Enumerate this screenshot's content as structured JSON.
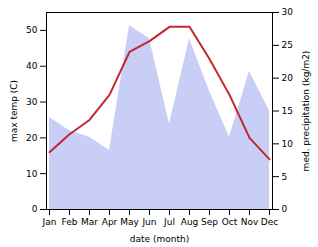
{
  "chart_data": {
    "type": "line",
    "categories": [
      "Jan",
      "Feb",
      "Mar",
      "Apr",
      "May",
      "Jun",
      "Jul",
      "Aug",
      "Sep",
      "Oct",
      "Nov",
      "Dec"
    ],
    "xlabel": "date (month)",
    "ylabel": "max temp (C)",
    "y2label": "med. precipitation (kg/m2)",
    "series": [
      {
        "type": "area",
        "axis": "y2",
        "color": "#c8cef5",
        "values": [
          14,
          12,
          11,
          9,
          28,
          26,
          13,
          26,
          18,
          11,
          21,
          15
        ]
      },
      {
        "type": "line",
        "color": "#c0282d",
        "values": [
          16,
          21,
          25,
          32,
          44,
          47,
          51,
          51,
          42,
          32,
          20,
          14
        ]
      }
    ],
    "ylim": [
      0,
      55
    ],
    "yticks": [
      0,
      10,
      20,
      30,
      40,
      50
    ],
    "y2lim": [
      0,
      30
    ],
    "y2ticks": [
      0,
      5,
      10,
      15,
      20,
      25,
      30
    ]
  }
}
